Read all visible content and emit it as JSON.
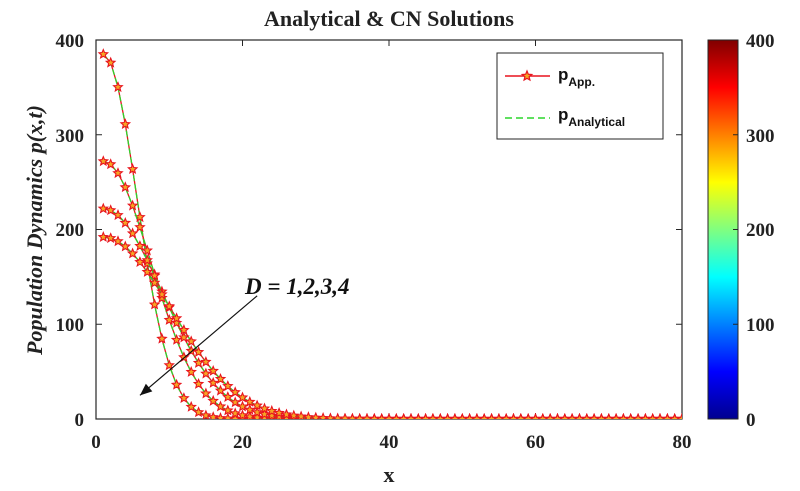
{
  "chart_data": {
    "type": "line",
    "title": "Analytical & CN Solutions",
    "xlabel": "x",
    "ylabel": "Population Dynamics p(x,t)",
    "xlim": [
      0,
      80
    ],
    "ylim": [
      0,
      400
    ],
    "xticks": [
      "0",
      "20",
      "40",
      "60",
      "80"
    ],
    "yticks": [
      "0",
      "100",
      "200",
      "300",
      "400"
    ],
    "grid": false,
    "legend_position": "top-right",
    "legend": [
      {
        "base": "p",
        "sub": "App.",
        "style": "solid red line with star markers",
        "color": "#e8141e"
      },
      {
        "base": "p",
        "sub": "Analytical",
        "style": "dashed green line",
        "color": "#2bd52b"
      }
    ],
    "annotation": {
      "text": "D = 1,2,3,4",
      "points_to": [
        6,
        25
      ],
      "from": [
        22,
        130
      ]
    },
    "colorbar": {
      "ticks": [
        "0",
        "100",
        "200",
        "300",
        "400"
      ],
      "range": [
        0,
        400
      ],
      "colormap": "jet",
      "colors": [
        "#00008f",
        "#0000ff",
        "#0080ff",
        "#00ffff",
        "#80ff80",
        "#ffff00",
        "#ff8000",
        "#ff0000",
        "#800000"
      ]
    },
    "marker_color": "#f5a623",
    "series": [
      {
        "D": 1,
        "peak": 385,
        "width": 6.5,
        "marker_step": 1
      },
      {
        "D": 2,
        "peak": 272,
        "width": 9.2,
        "marker_step": 1
      },
      {
        "D": 3,
        "peak": 222,
        "width": 11.3,
        "marker_step": 1
      },
      {
        "D": 4,
        "peak": 192,
        "width": 13.0,
        "marker_step": 1
      }
    ]
  }
}
